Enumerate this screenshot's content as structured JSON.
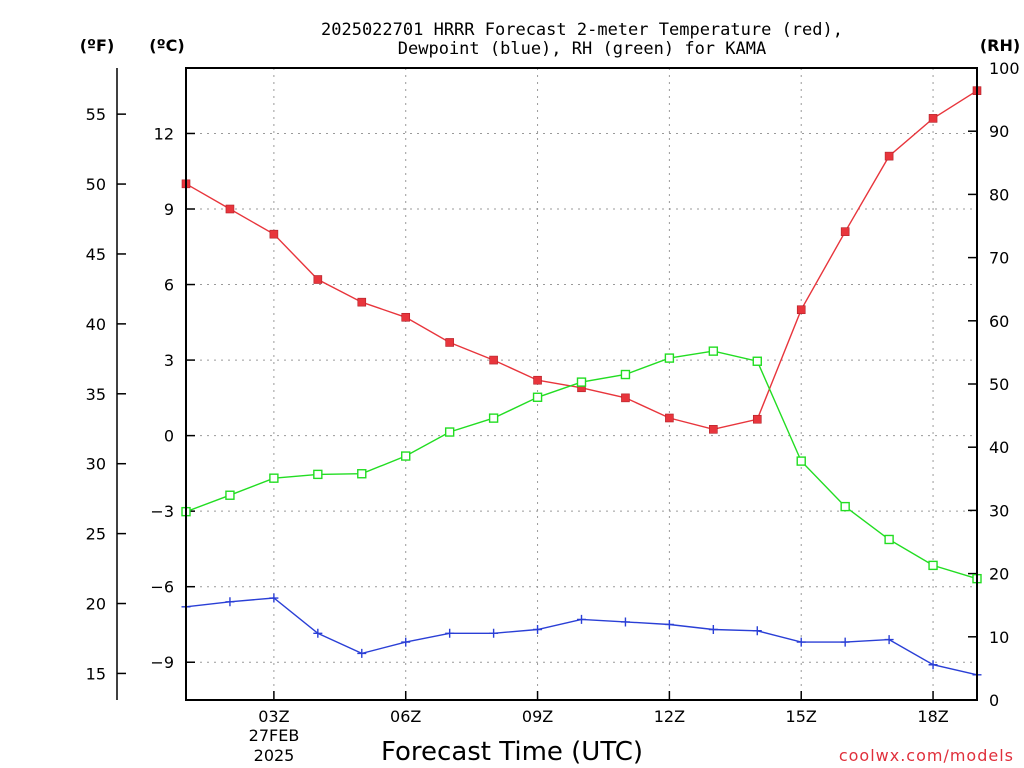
{
  "chart_data": {
    "type": "line",
    "title_lines": [
      "2025022701 HRRR Forecast 2-meter Temperature (red),",
      "Dewpoint (blue), RH (green) for KAMA"
    ],
    "xlabel": "Forecast Time (UTC)",
    "x_hours": [
      1,
      2,
      3,
      4,
      5,
      6,
      7,
      8,
      9,
      10,
      11,
      12,
      13,
      14,
      15,
      16,
      17,
      18,
      19
    ],
    "x_ticks": [
      {
        "hour": 3,
        "label": "03Z"
      },
      {
        "hour": 6,
        "label": "06Z"
      },
      {
        "hour": 9,
        "label": "09Z"
      },
      {
        "hour": 12,
        "label": "12Z"
      },
      {
        "hour": 15,
        "label": "15Z"
      },
      {
        "hour": 18,
        "label": "18Z"
      }
    ],
    "date_label": [
      "27FEB",
      "2025"
    ],
    "xlim": [
      1,
      19
    ],
    "celsius_axis": {
      "label": "(ºC)",
      "ylim": [
        -10.5,
        14.6
      ],
      "ticks": [
        -9,
        -6,
        -3,
        0,
        3,
        6,
        9,
        12
      ]
    },
    "fahrenheit_axis": {
      "label": "(ºF)",
      "ylim": [
        13.1,
        58.3
      ],
      "ticks": [
        15,
        20,
        25,
        30,
        35,
        40,
        45,
        50,
        55
      ]
    },
    "rh_axis": {
      "label": "(RH)",
      "ylim": [
        0,
        100
      ],
      "ticks": [
        0,
        10,
        20,
        30,
        40,
        50,
        60,
        70,
        80,
        90,
        100
      ]
    },
    "grid": true,
    "series": [
      {
        "color": "#e8353c",
        "marker": "filled-square",
        "axis": "celsius",
        "values": [
          10.0,
          9.0,
          8.0,
          6.2,
          5.3,
          4.7,
          3.7,
          3.0,
          2.2,
          1.9,
          1.5,
          0.7,
          0.25,
          0.65,
          5.0,
          8.1,
          11.1,
          12.6,
          13.7
        ]
      },
      {
        "color": "#2a3fd6",
        "marker": "plus",
        "axis": "celsius",
        "values": [
          -6.8,
          -6.6,
          -6.45,
          -7.85,
          -8.65,
          -8.2,
          -7.85,
          -7.85,
          -7.7,
          -7.3,
          -7.4,
          -7.5,
          -7.7,
          -7.75,
          -8.2,
          -8.2,
          -8.1,
          -9.1,
          -9.5
        ]
      },
      {
        "color": "#22dd22",
        "marker": "open-square",
        "axis": "rh",
        "values": [
          29.8,
          32.4,
          35.1,
          35.7,
          35.8,
          38.6,
          42.4,
          44.6,
          47.9,
          50.3,
          51.5,
          54.1,
          55.2,
          53.6,
          37.8,
          30.6,
          25.4,
          21.3,
          19.2
        ]
      }
    ]
  },
  "credit": "coolwx.com/models"
}
